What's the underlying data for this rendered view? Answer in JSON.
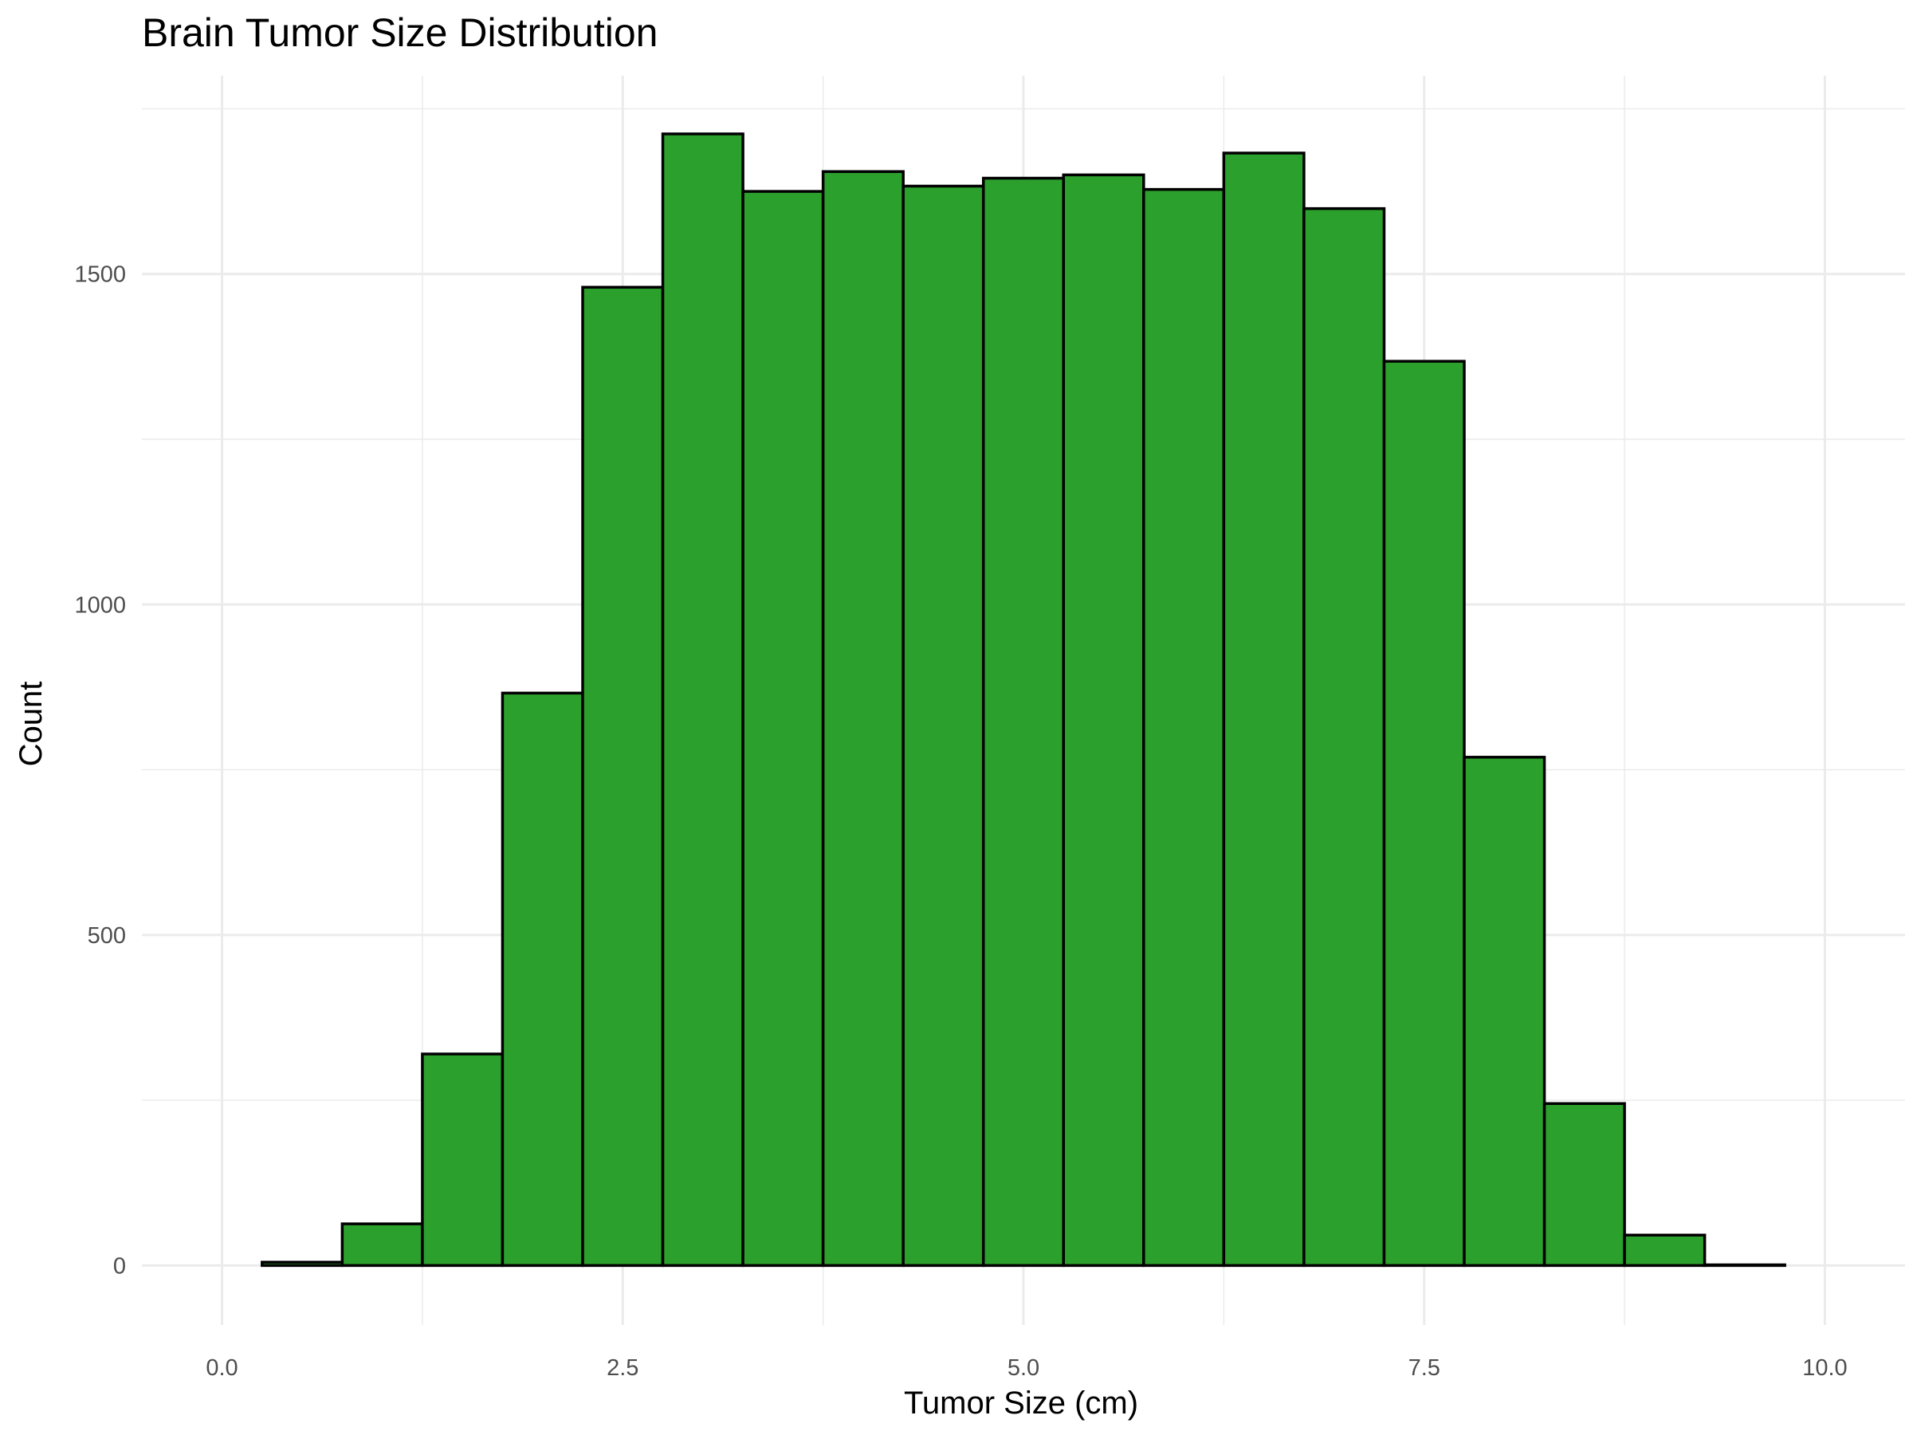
{
  "chart_data": {
    "type": "histogram",
    "title": "Brain Tumor Size Distribution",
    "xlabel": "Tumor Size (cm)",
    "ylabel": "Count",
    "xlim": [
      -0.5,
      10.5
    ],
    "ylim": [
      -90,
      1800
    ],
    "x_ticks": [
      0.0,
      2.5,
      5.0,
      7.5,
      10.0
    ],
    "x_tick_labels": [
      "0.0",
      "2.5",
      "5.0",
      "7.5",
      "10.0"
    ],
    "x_minor_ticks": [
      1.25,
      3.75,
      6.25,
      8.75
    ],
    "y_ticks": [
      0,
      500,
      1000,
      1500
    ],
    "y_tick_labels": [
      "0",
      "500",
      "1000",
      "1500"
    ],
    "y_minor_ticks": [
      250,
      750,
      1250,
      1750
    ],
    "grid": true,
    "bar_fill": "#2ca02c",
    "bar_edge": "#000000",
    "bins": [
      {
        "start": 0.25,
        "end": 0.75,
        "count": 5
      },
      {
        "start": 0.75,
        "end": 1.25,
        "count": 63
      },
      {
        "start": 1.25,
        "end": 1.75,
        "count": 320
      },
      {
        "start": 1.75,
        "end": 2.25,
        "count": 866
      },
      {
        "start": 2.25,
        "end": 2.75,
        "count": 1480
      },
      {
        "start": 2.75,
        "end": 3.25,
        "count": 1712
      },
      {
        "start": 3.25,
        "end": 3.75,
        "count": 1625
      },
      {
        "start": 3.75,
        "end": 4.25,
        "count": 1655
      },
      {
        "start": 4.25,
        "end": 4.75,
        "count": 1633
      },
      {
        "start": 4.75,
        "end": 5.25,
        "count": 1645
      },
      {
        "start": 5.25,
        "end": 5.75,
        "count": 1650
      },
      {
        "start": 5.75,
        "end": 6.25,
        "count": 1628
      },
      {
        "start": 6.25,
        "end": 6.75,
        "count": 1683
      },
      {
        "start": 6.75,
        "end": 7.25,
        "count": 1599
      },
      {
        "start": 7.25,
        "end": 7.75,
        "count": 1368
      },
      {
        "start": 7.75,
        "end": 8.25,
        "count": 769
      },
      {
        "start": 8.25,
        "end": 8.75,
        "count": 245
      },
      {
        "start": 8.75,
        "end": 9.25,
        "count": 46
      },
      {
        "start": 9.25,
        "end": 9.75,
        "count": 1
      }
    ]
  }
}
